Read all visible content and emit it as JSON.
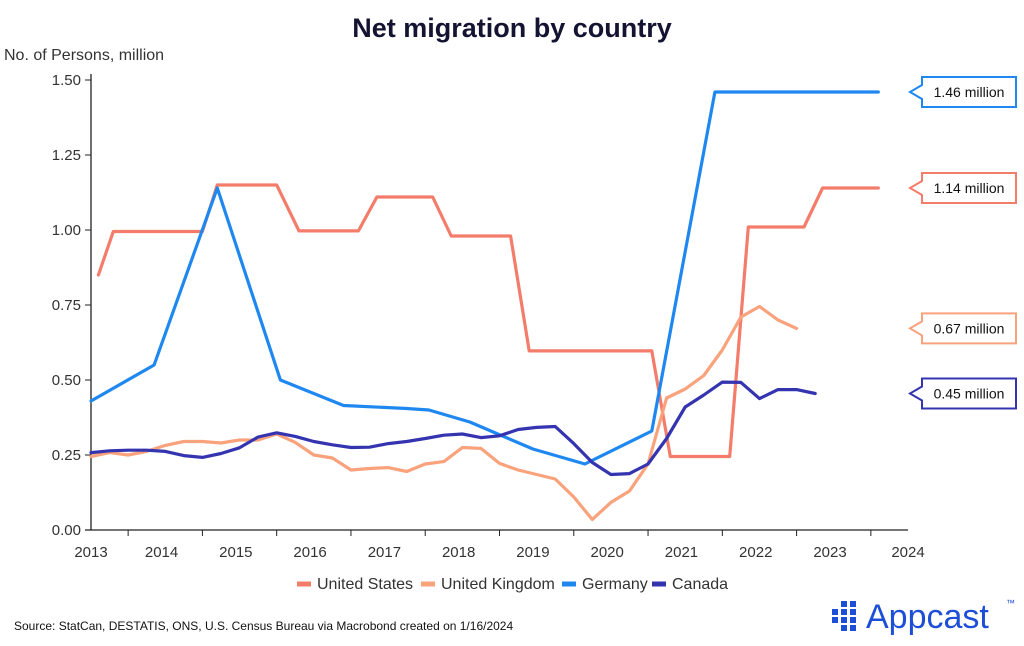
{
  "chart_data": {
    "type": "line",
    "title": "Net migration by country",
    "ylabel": "No. of Persons, million",
    "xlabel": "",
    "xlim": [
      2013.0,
      2024.0
    ],
    "ylim": [
      0,
      1.5
    ],
    "yticks": [
      "0.00",
      "0.25",
      "0.50",
      "0.75",
      "1.00",
      "1.25",
      "1.50"
    ],
    "xticks": [
      "2013",
      "2014",
      "2015",
      "2016",
      "2017",
      "2018",
      "2019",
      "2020",
      "2021",
      "2022",
      "2023",
      "2024"
    ],
    "legend_position": "bottom",
    "series": [
      {
        "name": "United States",
        "color": "#f47c6a",
        "points": [
          [
            2013.1,
            0.85
          ],
          [
            2013.3,
            0.995
          ],
          [
            2014.0,
            0.995
          ],
          [
            2014.5,
            0.995
          ],
          [
            2014.7,
            1.15
          ],
          [
            2015.5,
            1.15
          ],
          [
            2015.8,
            0.997
          ],
          [
            2016.6,
            0.997
          ],
          [
            2016.85,
            1.11
          ],
          [
            2017.6,
            1.11
          ],
          [
            2017.85,
            0.98
          ],
          [
            2018.65,
            0.98
          ],
          [
            2018.9,
            0.597
          ],
          [
            2020.55,
            0.597
          ],
          [
            2020.8,
            0.245
          ],
          [
            2021.6,
            0.245
          ],
          [
            2021.85,
            1.01
          ],
          [
            2022.6,
            1.01
          ],
          [
            2022.85,
            1.14
          ],
          [
            2023.6,
            1.14
          ]
        ],
        "callout": "1.14 million"
      },
      {
        "name": "United Kingdom",
        "color": "#f9a27c",
        "points": [
          [
            2013.0,
            0.245
          ],
          [
            2013.25,
            0.258
          ],
          [
            2013.5,
            0.25
          ],
          [
            2013.75,
            0.262
          ],
          [
            2014.0,
            0.282
          ],
          [
            2014.25,
            0.295
          ],
          [
            2014.5,
            0.295
          ],
          [
            2014.75,
            0.29
          ],
          [
            2015.0,
            0.3
          ],
          [
            2015.25,
            0.3
          ],
          [
            2015.5,
            0.32
          ],
          [
            2015.75,
            0.292
          ],
          [
            2016.0,
            0.25
          ],
          [
            2016.25,
            0.24
          ],
          [
            2016.5,
            0.2
          ],
          [
            2016.75,
            0.205
          ],
          [
            2017.0,
            0.208
          ],
          [
            2017.25,
            0.195
          ],
          [
            2017.5,
            0.22
          ],
          [
            2017.75,
            0.228
          ],
          [
            2018.0,
            0.275
          ],
          [
            2018.25,
            0.272
          ],
          [
            2018.5,
            0.222
          ],
          [
            2018.75,
            0.2
          ],
          [
            2019.0,
            0.185
          ],
          [
            2019.25,
            0.17
          ],
          [
            2019.5,
            0.11
          ],
          [
            2019.75,
            0.035
          ],
          [
            2020.0,
            0.092
          ],
          [
            2020.25,
            0.13
          ],
          [
            2020.5,
            0.22
          ],
          [
            2020.75,
            0.44
          ],
          [
            2021.0,
            0.47
          ],
          [
            2021.25,
            0.515
          ],
          [
            2021.5,
            0.6
          ],
          [
            2021.75,
            0.71
          ],
          [
            2022.0,
            0.745
          ],
          [
            2022.25,
            0.7
          ],
          [
            2022.5,
            0.672
          ]
        ],
        "callout": "0.67 million"
      },
      {
        "name": "Germany",
        "color": "#1e88f0",
        "points": [
          [
            2013.0,
            0.43
          ],
          [
            2013.85,
            0.55
          ],
          [
            2014.7,
            1.14
          ],
          [
            2015.55,
            0.5
          ],
          [
            2016.4,
            0.415
          ],
          [
            2017.25,
            0.405
          ],
          [
            2017.55,
            0.4
          ],
          [
            2018.1,
            0.36
          ],
          [
            2018.95,
            0.27
          ],
          [
            2019.65,
            0.22
          ],
          [
            2020.55,
            0.33
          ],
          [
            2021.4,
            1.46
          ],
          [
            2023.6,
            1.46
          ]
        ],
        "callout": "1.46 million"
      },
      {
        "name": "Canada",
        "color": "#3434b0",
        "points": [
          [
            2013.0,
            0.258
          ],
          [
            2013.25,
            0.264
          ],
          [
            2013.5,
            0.266
          ],
          [
            2013.75,
            0.266
          ],
          [
            2014.0,
            0.262
          ],
          [
            2014.25,
            0.248
          ],
          [
            2014.5,
            0.242
          ],
          [
            2014.75,
            0.255
          ],
          [
            2015.0,
            0.274
          ],
          [
            2015.25,
            0.31
          ],
          [
            2015.5,
            0.324
          ],
          [
            2015.75,
            0.312
          ],
          [
            2016.0,
            0.295
          ],
          [
            2016.25,
            0.284
          ],
          [
            2016.5,
            0.275
          ],
          [
            2016.75,
            0.276
          ],
          [
            2017.0,
            0.288
          ],
          [
            2017.25,
            0.295
          ],
          [
            2017.5,
            0.305
          ],
          [
            2017.75,
            0.316
          ],
          [
            2018.0,
            0.32
          ],
          [
            2018.25,
            0.308
          ],
          [
            2018.5,
            0.314
          ],
          [
            2018.75,
            0.335
          ],
          [
            2019.0,
            0.342
          ],
          [
            2019.25,
            0.345
          ],
          [
            2019.5,
            0.288
          ],
          [
            2019.75,
            0.225
          ],
          [
            2020.0,
            0.185
          ],
          [
            2020.25,
            0.188
          ],
          [
            2020.5,
            0.22
          ],
          [
            2020.75,
            0.305
          ],
          [
            2021.0,
            0.41
          ],
          [
            2021.25,
            0.45
          ],
          [
            2021.5,
            0.493
          ],
          [
            2021.75,
            0.492
          ],
          [
            2022.0,
            0.438
          ],
          [
            2022.25,
            0.468
          ],
          [
            2022.5,
            0.468
          ],
          [
            2022.75,
            0.455
          ]
        ],
        "callout": "0.45 million"
      }
    ]
  },
  "source": "Source: StatCan, DESTATIS, ONS, U.S. Census Bureau via Macrobond created on 1/16/2024",
  "brand": "Appcast",
  "brand_mark": "™",
  "brand_color": "#1d4ed8"
}
